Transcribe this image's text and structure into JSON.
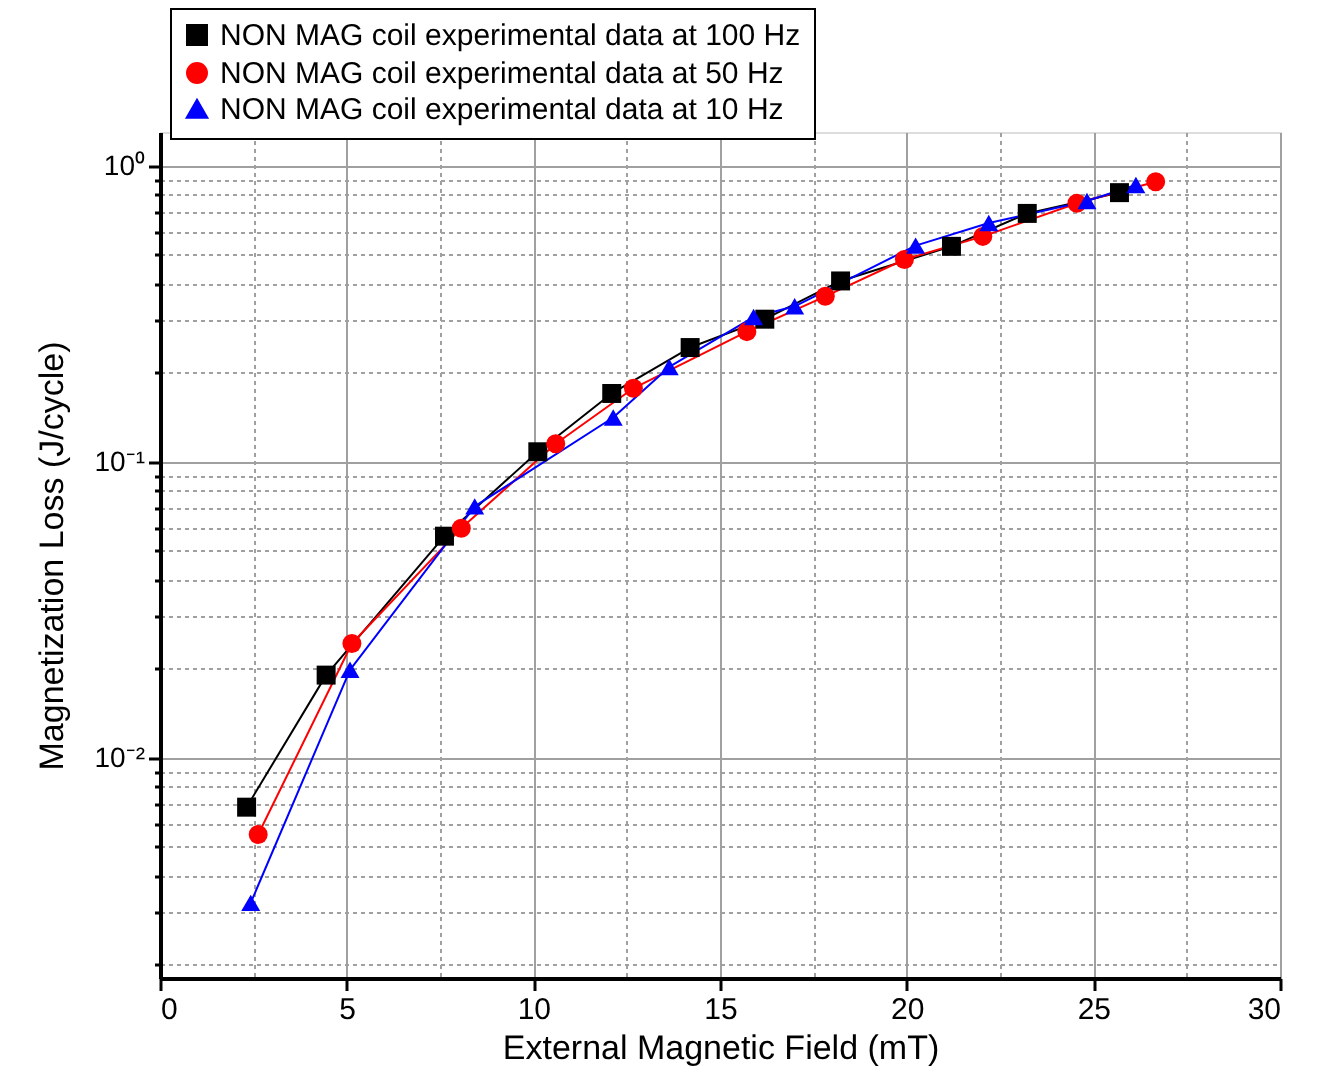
{
  "chart_data": {
    "type": "line",
    "xlabel": "External Magnetic Field (mT)",
    "ylabel": "Magnetization Loss (J/cycle)",
    "xlim": [
      0,
      30
    ],
    "ylim": [
      0.0018,
      1.3
    ],
    "log": "y",
    "grid": true,
    "legend": "top left",
    "line_style": "solid",
    "xticks": [
      0,
      {
        "value": 2.5,
        "label": null
      },
      5,
      {
        "value": 7.5,
        "label": null
      },
      10,
      {
        "value": 12.5,
        "label": null
      },
      15,
      {
        "value": 17.5,
        "label": null
      },
      20,
      {
        "value": 22.5,
        "label": null
      },
      25,
      {
        "value": 27.5,
        "label": null
      },
      30
    ],
    "yticks": [
      {
        "value": 0.002,
        "label": null
      },
      {
        "value": 0.003,
        "label": null
      },
      {
        "value": 0.004,
        "label": null
      },
      {
        "value": 0.005,
        "label": null
      },
      {
        "value": 0.006,
        "label": null
      },
      {
        "value": 0.007,
        "label": null
      },
      {
        "value": 0.008,
        "label": null
      },
      {
        "value": 0.009,
        "label": null
      },
      {
        "value": 0.01,
        "label": "10⁻²"
      },
      {
        "value": 0.02,
        "label": null
      },
      {
        "value": 0.03,
        "label": null
      },
      {
        "value": 0.04,
        "label": null
      },
      {
        "value": 0.05,
        "label": null
      },
      {
        "value": 0.06,
        "label": null
      },
      {
        "value": 0.07,
        "label": null
      },
      {
        "value": 0.08,
        "label": null
      },
      {
        "value": 0.09,
        "label": null
      },
      {
        "value": 0.1,
        "label": "10⁻¹"
      },
      {
        "value": 0.2,
        "label": null
      },
      {
        "value": 0.3,
        "label": null
      },
      {
        "value": 0.4,
        "label": null
      },
      {
        "value": 0.5,
        "label": null
      },
      {
        "value": 0.6,
        "label": null
      },
      {
        "value": 0.7,
        "label": null
      },
      {
        "value": 0.8,
        "label": null
      },
      {
        "value": 0.9,
        "label": null
      },
      {
        "value": 1,
        "label": "10⁰"
      }
    ],
    "series": [
      {
        "name": "NON MAG coil experimental data at 100 Hz",
        "color": "#000000",
        "marker": "square",
        "x": [
          2.32,
          4.45,
          7.62,
          10.12,
          12.1,
          14.2,
          16.2,
          18.23,
          21.2,
          23.23,
          25.7
        ],
        "values": [
          0.0068,
          0.019,
          0.056,
          0.108,
          0.17,
          0.243,
          0.303,
          0.408,
          0.534,
          0.69,
          0.811
        ]
      },
      {
        "name": "NON MAG coil experimental data at 50 Hz",
        "color": "#ff0000",
        "marker": "circle",
        "x": [
          2.63,
          5.14,
          8.07,
          10.6,
          12.68,
          15.72,
          17.82,
          19.94,
          22.04,
          24.56,
          26.67
        ],
        "values": [
          0.0055,
          0.0243,
          0.0596,
          0.115,
          0.177,
          0.275,
          0.362,
          0.482,
          0.577,
          0.747,
          0.883
        ]
      },
      {
        "name": "NON MAG coil experimental data at 10 Hz",
        "color": "#0000ff",
        "marker": "triangle",
        "x": [
          2.43,
          5.09,
          8.43,
          12.14,
          13.64,
          15.9,
          17.0,
          20.24,
          22.2,
          24.83,
          26.14
        ],
        "values": [
          0.00323,
          0.0198,
          0.0706,
          0.141,
          0.209,
          0.308,
          0.335,
          0.537,
          0.64,
          0.76,
          0.861
        ]
      }
    ]
  }
}
